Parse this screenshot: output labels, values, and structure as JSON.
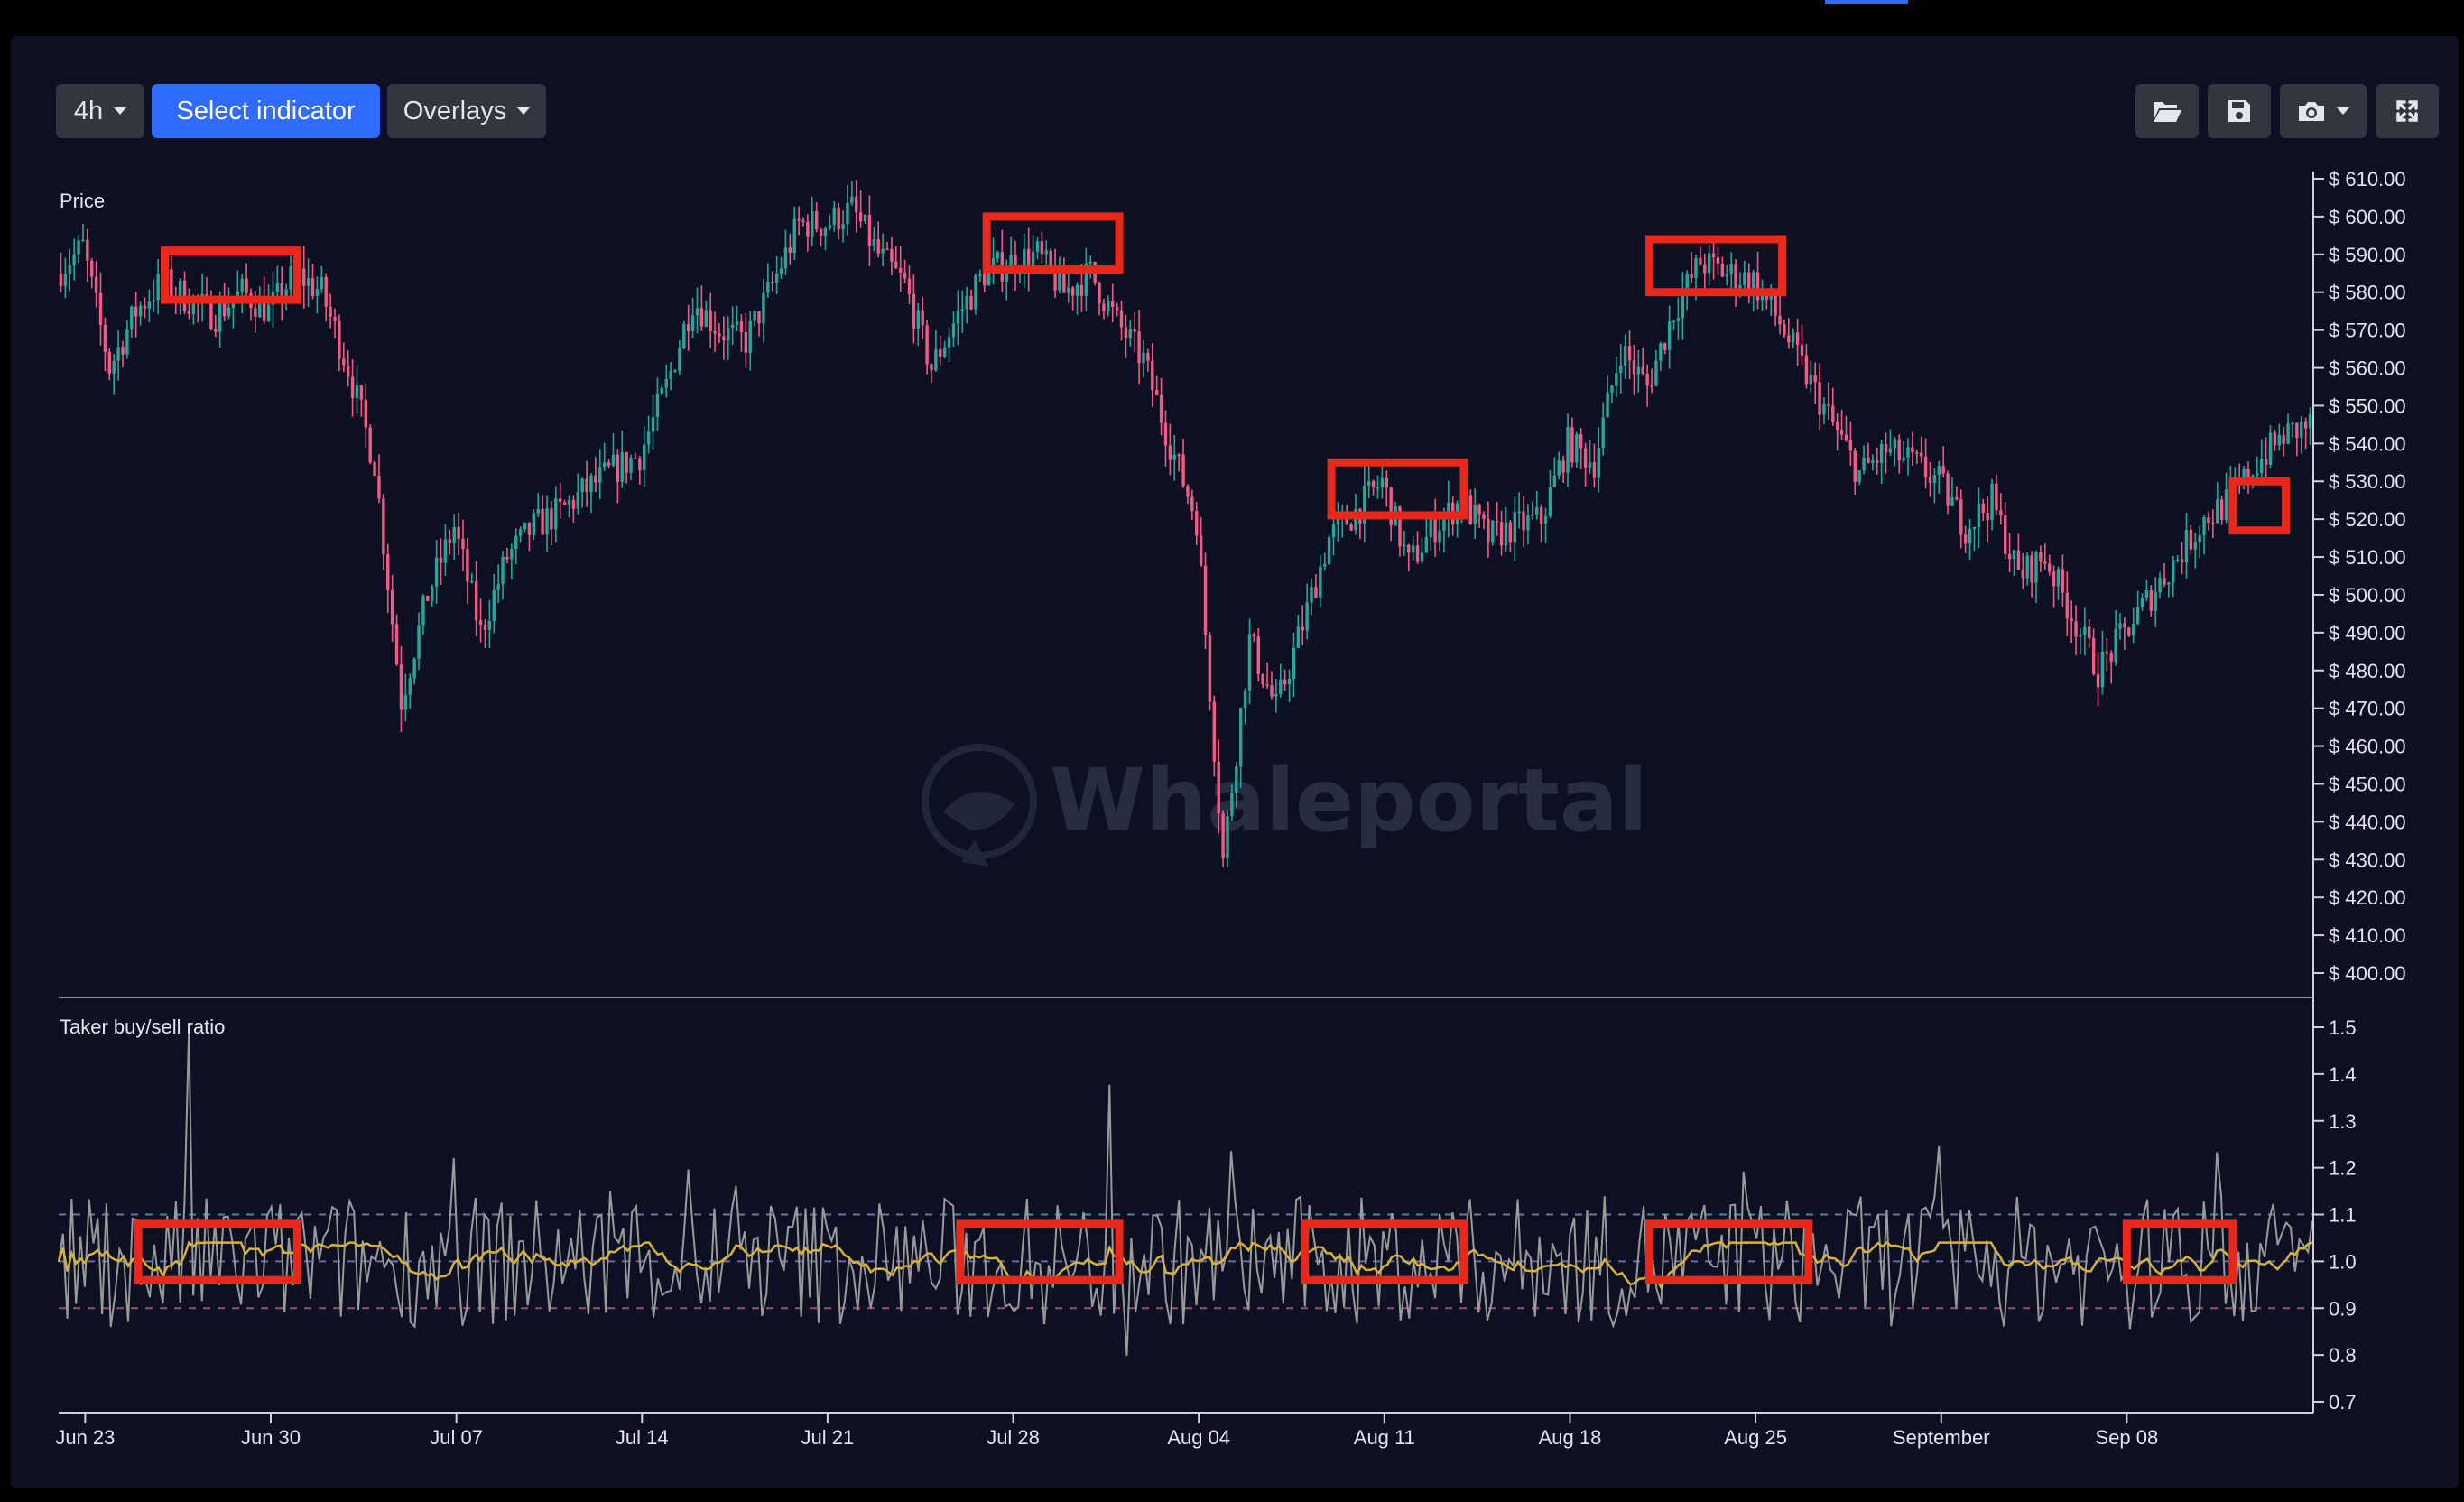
{
  "toolbar": {
    "interval_label": "4h",
    "select_indicator_label": "Select indicator",
    "overlays_label": "Overlays",
    "icons": [
      "folder-open-icon",
      "save-icon",
      "camera-icon",
      "expand-icon"
    ]
  },
  "watermark": "Whaleportal",
  "colors": {
    "background": "#0c1022",
    "up": "#26a69a",
    "down": "#ef5b84",
    "ratio_line": "#9a9a9a",
    "ma_line": "#d6b23a",
    "highlight": "#e8281a",
    "upper_dashed": "#5a7fa8",
    "mid_dashed": "#6a6aa8",
    "lower_dashed": "#a84a6a"
  },
  "chart_data": [
    {
      "type": "candlestick",
      "title": "Price",
      "y_ticks": [
        "$ 610.00",
        "$ 600.00",
        "$ 590.00",
        "$ 580.00",
        "$ 570.00",
        "$ 560.00",
        "$ 550.00",
        "$ 540.00",
        "$ 530.00",
        "$ 520.00",
        "$ 510.00",
        "$ 500.00",
        "$ 490.00",
        "$ 480.00",
        "$ 470.00",
        "$ 460.00",
        "$ 450.00",
        "$ 440.00",
        "$ 430.00",
        "$ 420.00",
        "$ 410.00",
        "$ 400.00"
      ],
      "ylim": [
        400,
        610
      ],
      "x_ticks": [
        "Jun 23",
        "Jun 30",
        "Jul 07",
        "Jul 14",
        "Jul 21",
        "Jul 28",
        "Aug 04",
        "Aug 11",
        "Aug 18",
        "Aug 25",
        "September",
        "Sep 08"
      ],
      "xlim": [
        "2024-06-22",
        "2024-09-15"
      ],
      "interval_hours": 4,
      "price_path": [
        [
          "2024-06-22",
          585
        ],
        [
          "2024-06-23",
          592
        ],
        [
          "2024-06-24",
          560
        ],
        [
          "2024-06-25",
          575
        ],
        [
          "2024-06-26",
          583
        ],
        [
          "2024-06-27",
          578
        ],
        [
          "2024-06-28",
          574
        ],
        [
          "2024-06-29",
          580
        ],
        [
          "2024-06-30",
          575
        ],
        [
          "2024-07-01",
          585
        ],
        [
          "2024-07-02",
          580
        ],
        [
          "2024-07-03",
          560
        ],
        [
          "2024-07-04",
          535
        ],
        [
          "2024-07-05",
          472
        ],
        [
          "2024-07-06",
          500
        ],
        [
          "2024-07-07",
          518
        ],
        [
          "2024-07-08",
          490
        ],
        [
          "2024-07-09",
          510
        ],
        [
          "2024-07-10",
          518
        ],
        [
          "2024-07-11",
          522
        ],
        [
          "2024-07-12",
          528
        ],
        [
          "2024-07-13",
          533
        ],
        [
          "2024-07-14",
          537
        ],
        [
          "2024-07-15",
          555
        ],
        [
          "2024-07-16",
          578
        ],
        [
          "2024-07-17",
          570
        ],
        [
          "2024-07-18",
          567
        ],
        [
          "2024-07-19",
          582
        ],
        [
          "2024-07-20",
          598
        ],
        [
          "2024-07-21",
          598
        ],
        [
          "2024-07-22",
          602
        ],
        [
          "2024-07-23",
          590
        ],
        [
          "2024-07-24",
          582
        ],
        [
          "2024-07-25",
          560
        ],
        [
          "2024-07-26",
          574
        ],
        [
          "2024-07-27",
          585
        ],
        [
          "2024-07-28",
          588
        ],
        [
          "2024-07-29",
          590
        ],
        [
          "2024-07-30",
          580
        ],
        [
          "2024-07-31",
          585
        ],
        [
          "2024-08-01",
          572
        ],
        [
          "2024-08-02",
          562
        ],
        [
          "2024-08-03",
          540
        ],
        [
          "2024-08-04",
          520
        ],
        [
          "2024-08-05",
          430
        ],
        [
          "2024-08-06",
          488
        ],
        [
          "2024-08-07",
          470
        ],
        [
          "2024-08-08",
          492
        ],
        [
          "2024-08-09",
          515
        ],
        [
          "2024-08-10",
          522
        ],
        [
          "2024-08-11",
          530
        ],
        [
          "2024-08-12",
          508
        ],
        [
          "2024-08-13",
          518
        ],
        [
          "2024-08-14",
          525
        ],
        [
          "2024-08-15",
          515
        ],
        [
          "2024-08-16",
          518
        ],
        [
          "2024-08-17",
          520
        ],
        [
          "2024-08-18",
          540
        ],
        [
          "2024-08-19",
          535
        ],
        [
          "2024-08-20",
          565
        ],
        [
          "2024-08-21",
          555
        ],
        [
          "2024-08-22",
          575
        ],
        [
          "2024-08-23",
          588
        ],
        [
          "2024-08-24",
          585
        ],
        [
          "2024-08-25",
          583
        ],
        [
          "2024-08-26",
          572
        ],
        [
          "2024-08-27",
          558
        ],
        [
          "2024-08-28",
          545
        ],
        [
          "2024-08-29",
          532
        ],
        [
          "2024-08-30",
          538
        ],
        [
          "2024-08-31",
          535
        ],
        [
          "2024-09-01",
          530
        ],
        [
          "2024-09-02",
          518
        ],
        [
          "2024-09-03",
          525
        ],
        [
          "2024-09-04",
          505
        ],
        [
          "2024-09-05",
          510
        ],
        [
          "2024-09-06",
          495
        ],
        [
          "2024-09-07",
          480
        ],
        [
          "2024-09-08",
          490
        ],
        [
          "2024-09-09",
          500
        ],
        [
          "2024-09-10",
          510
        ],
        [
          "2024-09-11",
          520
        ],
        [
          "2024-09-12",
          525
        ],
        [
          "2024-09-13",
          535
        ],
        [
          "2024-09-14",
          542
        ],
        [
          "2024-09-15",
          545
        ]
      ],
      "highlight_ranges": [
        {
          "x": [
            "2024-06-26",
            "2024-07-01"
          ],
          "y": [
            578,
            591
          ]
        },
        {
          "x": [
            "2024-07-27",
            "2024-08-01"
          ],
          "y": [
            586,
            600
          ]
        },
        {
          "x": [
            "2024-08-09",
            "2024-08-14"
          ],
          "y": [
            521,
            535
          ]
        },
        {
          "x": [
            "2024-08-21",
            "2024-08-26"
          ],
          "y": [
            580,
            594
          ]
        },
        {
          "x": [
            "2024-09-12",
            "2024-09-14"
          ],
          "y": [
            517,
            530
          ]
        }
      ]
    },
    {
      "type": "line",
      "title": "Taker buy/sell ratio",
      "y_ticks": [
        "1.5",
        "1.4",
        "1.3",
        "1.2",
        "1.1",
        "1.0",
        "0.9",
        "0.8",
        "0.7"
      ],
      "ylim": [
        0.7,
        1.5
      ],
      "dashed_levels": [
        1.1,
        1.0,
        0.9
      ],
      "series": [
        {
          "values_range": [
            0.74,
            1.5
          ]
        },
        {
          "values_range": [
            0.93,
            1.04
          ]
        }
      ],
      "highlight_ranges": [
        {
          "x": [
            "2024-06-25",
            "2024-07-01"
          ],
          "y": [
            0.96,
            1.08
          ]
        },
        {
          "x": [
            "2024-07-26",
            "2024-08-01"
          ],
          "y": [
            0.96,
            1.08
          ]
        },
        {
          "x": [
            "2024-08-08",
            "2024-08-14"
          ],
          "y": [
            0.96,
            1.08
          ]
        },
        {
          "x": [
            "2024-08-21",
            "2024-08-27"
          ],
          "y": [
            0.96,
            1.08
          ]
        },
        {
          "x": [
            "2024-09-08",
            "2024-09-12"
          ],
          "y": [
            0.96,
            1.08
          ]
        }
      ]
    }
  ]
}
